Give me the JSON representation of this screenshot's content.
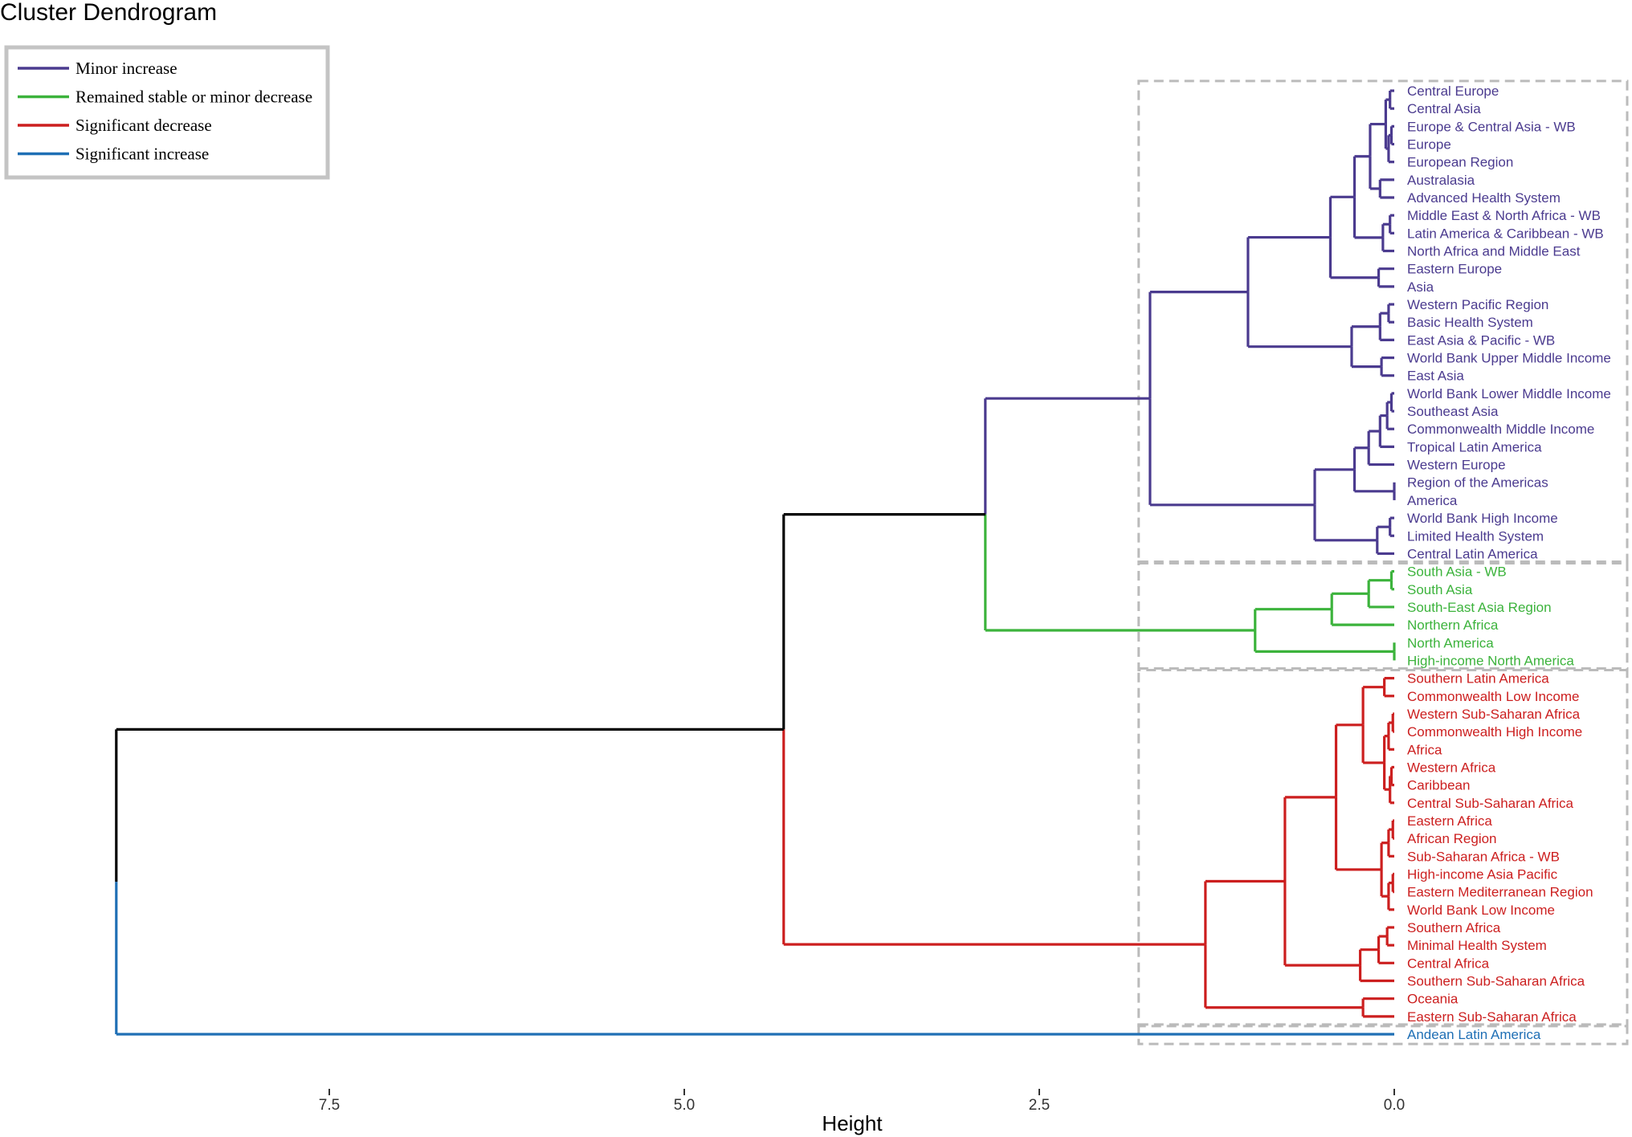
{
  "chart_data": {
    "type": "dendrogram",
    "title": "Cluster Dendrogram",
    "xlabel": "Height",
    "xlim": [
      9.5,
      -1.7
    ],
    "ticks": [
      "7.5",
      "5.0",
      "2.5",
      "0.0"
    ],
    "tick_values": [
      7.5,
      5.0,
      2.5,
      0.0
    ],
    "legend": {
      "position": "top-left",
      "entries": [
        {
          "label": "Minor increase",
          "color": "#4B3B8F"
        },
        {
          "label": "Remained stable or minor decrease",
          "color": "#3CB33C"
        },
        {
          "label": "Significant decrease",
          "color": "#CC1F1F"
        },
        {
          "label": "Significant increase",
          "color": "#1F6FB5"
        }
      ]
    },
    "colors": {
      "minor_increase": "#4B3B8F",
      "stable": "#3CB33C",
      "significant_decrease": "#CC1F1F",
      "significant_increase": "#1F6FB5",
      "root": "#000000",
      "box": "#BBBBBB"
    },
    "leaves": [
      {
        "label": "Central Europe",
        "cluster": "minor_increase"
      },
      {
        "label": "Central Asia",
        "cluster": "minor_increase"
      },
      {
        "label": "Europe & Central Asia - WB",
        "cluster": "minor_increase"
      },
      {
        "label": "Europe",
        "cluster": "minor_increase"
      },
      {
        "label": "European Region",
        "cluster": "minor_increase"
      },
      {
        "label": "Australasia",
        "cluster": "minor_increase"
      },
      {
        "label": "Advanced Health System",
        "cluster": "minor_increase"
      },
      {
        "label": "Middle East & North Africa - WB",
        "cluster": "minor_increase"
      },
      {
        "label": "Latin America & Caribbean - WB",
        "cluster": "minor_increase"
      },
      {
        "label": "North Africa and Middle East",
        "cluster": "minor_increase"
      },
      {
        "label": "Eastern Europe",
        "cluster": "minor_increase"
      },
      {
        "label": "Asia",
        "cluster": "minor_increase"
      },
      {
        "label": "Western Pacific Region",
        "cluster": "minor_increase"
      },
      {
        "label": "Basic Health System",
        "cluster": "minor_increase"
      },
      {
        "label": "East Asia & Pacific - WB",
        "cluster": "minor_increase"
      },
      {
        "label": "World Bank Upper Middle Income",
        "cluster": "minor_increase"
      },
      {
        "label": "East Asia",
        "cluster": "minor_increase"
      },
      {
        "label": "World Bank Lower Middle Income",
        "cluster": "minor_increase"
      },
      {
        "label": "Southeast Asia",
        "cluster": "minor_increase"
      },
      {
        "label": "Commonwealth Middle Income",
        "cluster": "minor_increase"
      },
      {
        "label": "Tropical Latin America",
        "cluster": "minor_increase"
      },
      {
        "label": "Western Europe",
        "cluster": "minor_increase"
      },
      {
        "label": "Region of the Americas",
        "cluster": "minor_increase"
      },
      {
        "label": "America",
        "cluster": "minor_increase"
      },
      {
        "label": "World Bank High Income",
        "cluster": "minor_increase"
      },
      {
        "label": "Limited Health System",
        "cluster": "minor_increase"
      },
      {
        "label": "Central Latin America",
        "cluster": "minor_increase"
      },
      {
        "label": "South Asia - WB",
        "cluster": "stable"
      },
      {
        "label": "South Asia",
        "cluster": "stable"
      },
      {
        "label": "South-East Asia Region",
        "cluster": "stable"
      },
      {
        "label": "Northern Africa",
        "cluster": "stable"
      },
      {
        "label": "North America",
        "cluster": "stable"
      },
      {
        "label": "High-income North America",
        "cluster": "stable"
      },
      {
        "label": "Southern Latin America",
        "cluster": "significant_decrease"
      },
      {
        "label": "Commonwealth Low Income",
        "cluster": "significant_decrease"
      },
      {
        "label": "Western Sub-Saharan Africa",
        "cluster": "significant_decrease"
      },
      {
        "label": "Commonwealth High Income",
        "cluster": "significant_decrease"
      },
      {
        "label": "Africa",
        "cluster": "significant_decrease"
      },
      {
        "label": "Western Africa",
        "cluster": "significant_decrease"
      },
      {
        "label": "Caribbean",
        "cluster": "significant_decrease"
      },
      {
        "label": "Central Sub-Saharan Africa",
        "cluster": "significant_decrease"
      },
      {
        "label": "Eastern Africa",
        "cluster": "significant_decrease"
      },
      {
        "label": "African Region",
        "cluster": "significant_decrease"
      },
      {
        "label": "Sub-Saharan Africa - WB",
        "cluster": "significant_decrease"
      },
      {
        "label": "High-income Asia Pacific",
        "cluster": "significant_decrease"
      },
      {
        "label": "Eastern Mediterranean Region",
        "cluster": "significant_decrease"
      },
      {
        "label": "World Bank Low Income",
        "cluster": "significant_decrease"
      },
      {
        "label": "Southern Africa",
        "cluster": "significant_decrease"
      },
      {
        "label": "Minimal Health System",
        "cluster": "significant_decrease"
      },
      {
        "label": "Central Africa",
        "cluster": "significant_decrease"
      },
      {
        "label": "Southern Sub-Saharan Africa",
        "cluster": "significant_decrease"
      },
      {
        "label": "Oceania",
        "cluster": "significant_decrease"
      },
      {
        "label": "Eastern Sub-Saharan Africa",
        "cluster": "significant_decrease"
      },
      {
        "label": "Andean Latin America",
        "cluster": "significant_increase"
      }
    ],
    "merges": [
      {
        "id": "p1",
        "children": [
          0,
          1
        ],
        "height": 0.03,
        "cluster": "minor_increase"
      },
      {
        "id": "p2",
        "children": [
          2,
          3
        ],
        "height": 0.02,
        "cluster": "minor_increase"
      },
      {
        "id": "p3",
        "children": [
          "p2",
          4
        ],
        "height": 0.04,
        "cluster": "minor_increase"
      },
      {
        "id": "p4",
        "children": [
          "p1",
          "p3"
        ],
        "height": 0.06,
        "cluster": "minor_increase"
      },
      {
        "id": "p5",
        "children": [
          5,
          6
        ],
        "height": 0.1,
        "cluster": "minor_increase"
      },
      {
        "id": "p6",
        "children": [
          "p4",
          "p5"
        ],
        "height": 0.17,
        "cluster": "minor_increase"
      },
      {
        "id": "p7",
        "children": [
          7,
          8
        ],
        "height": 0.03,
        "cluster": "minor_increase"
      },
      {
        "id": "p8",
        "children": [
          "p7",
          9
        ],
        "height": 0.08,
        "cluster": "minor_increase"
      },
      {
        "id": "p9",
        "children": [
          "p6",
          "p8"
        ],
        "height": 0.28,
        "cluster": "minor_increase"
      },
      {
        "id": "p10",
        "children": [
          10,
          11
        ],
        "height": 0.11,
        "cluster": "minor_increase"
      },
      {
        "id": "p11",
        "children": [
          "p9",
          "p10"
        ],
        "height": 0.45,
        "cluster": "minor_increase"
      },
      {
        "id": "p12",
        "children": [
          12,
          13
        ],
        "height": 0.04,
        "cluster": "minor_increase"
      },
      {
        "id": "p13",
        "children": [
          "p12",
          14
        ],
        "height": 0.1,
        "cluster": "minor_increase"
      },
      {
        "id": "p14",
        "children": [
          15,
          16
        ],
        "height": 0.09,
        "cluster": "minor_increase"
      },
      {
        "id": "p15",
        "children": [
          "p13",
          "p14"
        ],
        "height": 0.3,
        "cluster": "minor_increase"
      },
      {
        "id": "p16",
        "children": [
          "p11",
          "p15"
        ],
        "height": 1.03,
        "cluster": "minor_increase"
      },
      {
        "id": "p17",
        "children": [
          17,
          18
        ],
        "height": 0.02,
        "cluster": "minor_increase"
      },
      {
        "id": "p18",
        "children": [
          "p17",
          19
        ],
        "height": 0.05,
        "cluster": "minor_increase"
      },
      {
        "id": "p19",
        "children": [
          "p18",
          20
        ],
        "height": 0.1,
        "cluster": "minor_increase"
      },
      {
        "id": "p20",
        "children": [
          "p19",
          21
        ],
        "height": 0.18,
        "cluster": "minor_increase"
      },
      {
        "id": "p21",
        "children": [
          22,
          23
        ],
        "height": 0.0,
        "cluster": "minor_increase"
      },
      {
        "id": "p22",
        "children": [
          "p20",
          "p21"
        ],
        "height": 0.28,
        "cluster": "minor_increase"
      },
      {
        "id": "p23",
        "children": [
          24,
          25
        ],
        "height": 0.03,
        "cluster": "minor_increase"
      },
      {
        "id": "p24",
        "children": [
          "p23",
          26
        ],
        "height": 0.12,
        "cluster": "minor_increase"
      },
      {
        "id": "p25",
        "children": [
          "p22",
          "p24"
        ],
        "height": 0.56,
        "cluster": "minor_increase"
      },
      {
        "id": "p26",
        "children": [
          "p16",
          "p25"
        ],
        "height": 1.72,
        "cluster": "minor_increase"
      },
      {
        "id": "g1",
        "children": [
          27,
          28
        ],
        "height": 0.02,
        "cluster": "stable"
      },
      {
        "id": "g2",
        "children": [
          "g1",
          29
        ],
        "height": 0.18,
        "cluster": "stable"
      },
      {
        "id": "g3",
        "children": [
          "g2",
          30
        ],
        "height": 0.44,
        "cluster": "stable"
      },
      {
        "id": "g4",
        "children": [
          31,
          32
        ],
        "height": 0.0,
        "cluster": "stable"
      },
      {
        "id": "g5",
        "children": [
          "g3",
          "g4"
        ],
        "height": 0.98,
        "cluster": "stable"
      },
      {
        "id": "k1",
        "children": [
          "p26",
          "g5"
        ],
        "height": 2.88,
        "cluster": "stable"
      },
      {
        "id": "r1",
        "children": [
          33,
          34
        ],
        "height": 0.07,
        "cluster": "significant_decrease"
      },
      {
        "id": "r2",
        "children": [
          35,
          36
        ],
        "height": 0.01,
        "cluster": "significant_decrease"
      },
      {
        "id": "r3",
        "children": [
          "r2",
          37
        ],
        "height": 0.04,
        "cluster": "significant_decrease"
      },
      {
        "id": "r4",
        "children": [
          38,
          39
        ],
        "height": 0.02,
        "cluster": "significant_decrease"
      },
      {
        "id": "r5",
        "children": [
          "r4",
          40
        ],
        "height": 0.03,
        "cluster": "significant_decrease"
      },
      {
        "id": "r6",
        "children": [
          "r3",
          "r5"
        ],
        "height": 0.07,
        "cluster": "significant_decrease"
      },
      {
        "id": "r7",
        "children": [
          "r1",
          "r6"
        ],
        "height": 0.22,
        "cluster": "significant_decrease"
      },
      {
        "id": "r8",
        "children": [
          41,
          42
        ],
        "height": 0.01,
        "cluster": "significant_decrease"
      },
      {
        "id": "r9",
        "children": [
          "r8",
          43
        ],
        "height": 0.04,
        "cluster": "significant_decrease"
      },
      {
        "id": "r10",
        "children": [
          44,
          45
        ],
        "height": 0.01,
        "cluster": "significant_decrease"
      },
      {
        "id": "r11",
        "children": [
          "r10",
          46
        ],
        "height": 0.04,
        "cluster": "significant_decrease"
      },
      {
        "id": "r12",
        "children": [
          "r9",
          "r11"
        ],
        "height": 0.09,
        "cluster": "significant_decrease"
      },
      {
        "id": "r13",
        "children": [
          "r7",
          "r12"
        ],
        "height": 0.41,
        "cluster": "significant_decrease"
      },
      {
        "id": "r14",
        "children": [
          47,
          48
        ],
        "height": 0.05,
        "cluster": "significant_decrease"
      },
      {
        "id": "r15",
        "children": [
          "r14",
          49
        ],
        "height": 0.11,
        "cluster": "significant_decrease"
      },
      {
        "id": "r16",
        "children": [
          "r15",
          50
        ],
        "height": 0.24,
        "cluster": "significant_decrease"
      },
      {
        "id": "r17",
        "children": [
          "r13",
          "r16"
        ],
        "height": 0.77,
        "cluster": "significant_decrease"
      },
      {
        "id": "r18",
        "children": [
          51,
          52
        ],
        "height": 0.22,
        "cluster": "significant_decrease"
      },
      {
        "id": "r19",
        "children": [
          "r17",
          "r18"
        ],
        "height": 1.33,
        "cluster": "significant_decrease"
      },
      {
        "id": "k2",
        "children": [
          "k1",
          "r19"
        ],
        "height": 4.3,
        "cluster": "root"
      },
      {
        "id": "k3",
        "children": [
          "k2",
          53
        ],
        "height": 9.0,
        "cluster": "root"
      }
    ],
    "link_colors": {
      "k1_left": "minor_increase",
      "k2_top_descent_to_k1": "root",
      "k2_descent_to_r19": "significant_decrease",
      "k3_descent_to_k2": "root",
      "k3_descent_to_leaf": "significant_increase"
    }
  }
}
